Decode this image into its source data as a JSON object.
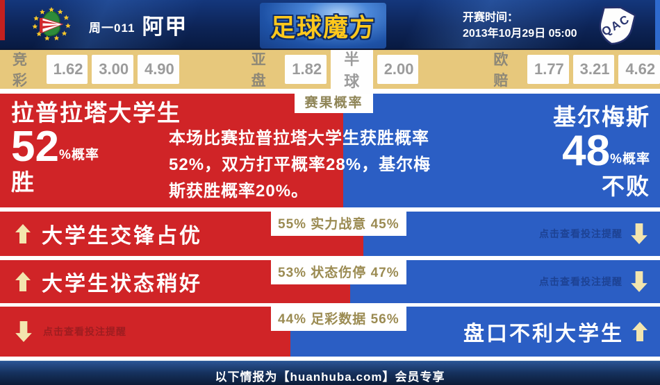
{
  "header": {
    "match_tag": "周一011",
    "league": "阿甲",
    "brand": "足球魔方",
    "kickoff_label": "开赛时间：",
    "kickoff_time": "2013年10月29日 05:00",
    "home_crest": "estudiantes-crest",
    "away_crest_text": "QAC"
  },
  "odds": {
    "jingcai": {
      "label": "竞彩",
      "values": [
        "1.62",
        "3.00",
        "4.90"
      ]
    },
    "yapan": {
      "label": "亚盘",
      "values": [
        "1.82",
        "半球",
        "2.00"
      ]
    },
    "oupei": {
      "label": "欧赔",
      "values": [
        "1.77",
        "3.21",
        "4.62"
      ]
    }
  },
  "probability": {
    "tab": "赛果概率",
    "home": {
      "name": "拉普拉塔大学生",
      "pct": "52",
      "pct_suffix": "%概率",
      "result": "胜",
      "width_pct": 52
    },
    "away": {
      "name": "基尔梅斯",
      "pct": "48",
      "pct_suffix": "%概率",
      "result": "不败"
    },
    "summary_lines": {
      "l1": "本场比赛拉普拉塔大学生获胜概率",
      "l2": "52%，双方打平概率28%，基尔梅",
      "l3": "斯获胜概率20%。"
    }
  },
  "rows": {
    "r1": {
      "badge": "55% 实力战意 45%",
      "red_pct": 55,
      "left_text": "大学生交锋占优",
      "right_text": "点击查看投注提醒"
    },
    "r2": {
      "badge": "53% 状态伤停 47%",
      "red_pct": 53,
      "left_text": "大学生状态稍好",
      "right_text": "点击查看投注提醒"
    },
    "r3": {
      "badge": "44% 足彩数据 56%",
      "red_pct": 44,
      "left_text": "点击查看投注提醒",
      "right_text": "盘口不利大学生"
    }
  },
  "footer": {
    "text": "以下情报为【huanhuba.com】会员专享"
  },
  "colors": {
    "red": "#d02427",
    "blue": "#2b5ec4",
    "odds_bg": "#e7c87c",
    "badge_text": "#9b8b52",
    "arrow": "#f3e5ae",
    "brand_gold": "#fec81c",
    "navy": "#0d2457",
    "prompt_blue": "#1d4293",
    "prompt_red": "#9e1d20"
  }
}
